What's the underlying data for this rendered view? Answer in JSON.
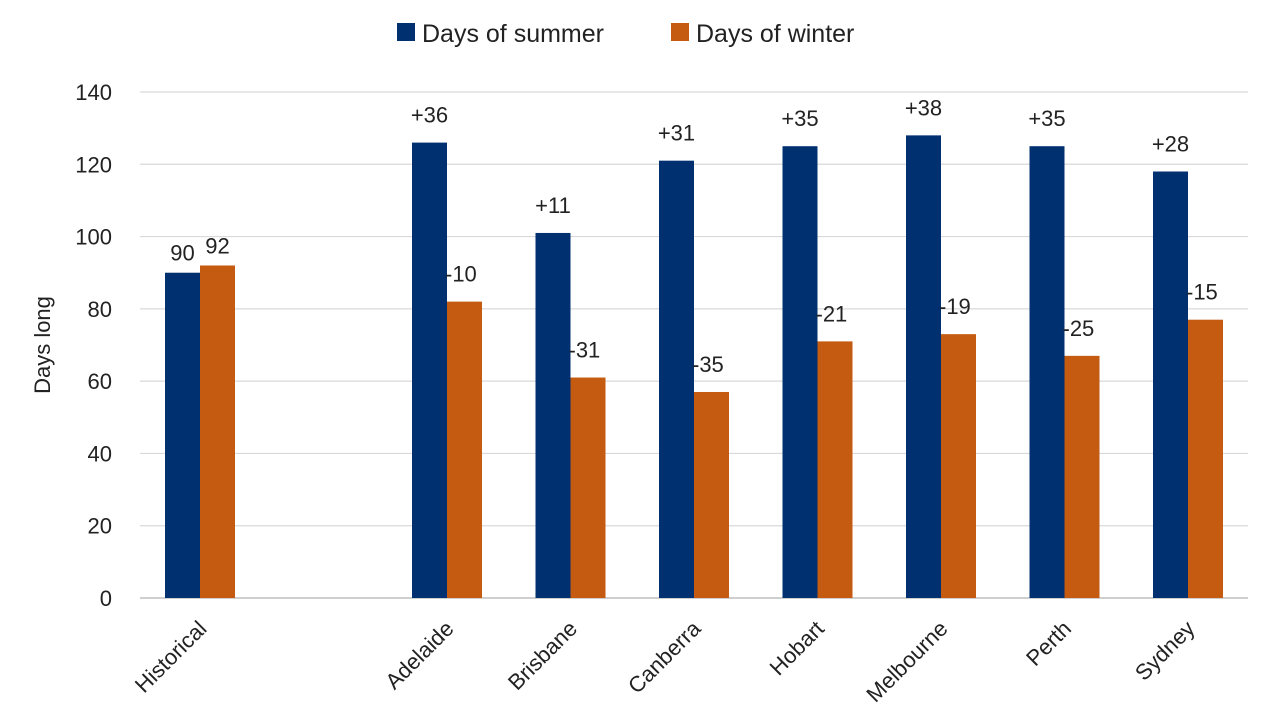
{
  "chart_data": {
    "type": "bar",
    "ylabel": "Days long",
    "ylim": [
      0,
      140
    ],
    "yticks": [
      0,
      20,
      40,
      60,
      80,
      100,
      120,
      140
    ],
    "grid": true,
    "legend_position": "top-center",
    "categories": [
      "Historical",
      "",
      "Adelaide",
      "Brisbane",
      "Canberra",
      "Hobart",
      "Melbourne",
      "Perth",
      "Sydney"
    ],
    "series": [
      {
        "name": "Days of summer",
        "color": "#003070",
        "values": [
          90,
          null,
          126,
          101,
          121,
          125,
          128,
          125,
          118
        ],
        "labels": [
          "90",
          "",
          "+36",
          "+11",
          "+31",
          "+35",
          "+38",
          "+35",
          "+28"
        ]
      },
      {
        "name": "Days of winter",
        "color": "#C55A11",
        "values": [
          92,
          null,
          82,
          61,
          57,
          71,
          73,
          67,
          77
        ],
        "labels": [
          "92",
          "",
          "-10",
          "-31",
          "-35",
          "-21",
          "-19",
          "-25",
          "-15"
        ]
      }
    ]
  }
}
